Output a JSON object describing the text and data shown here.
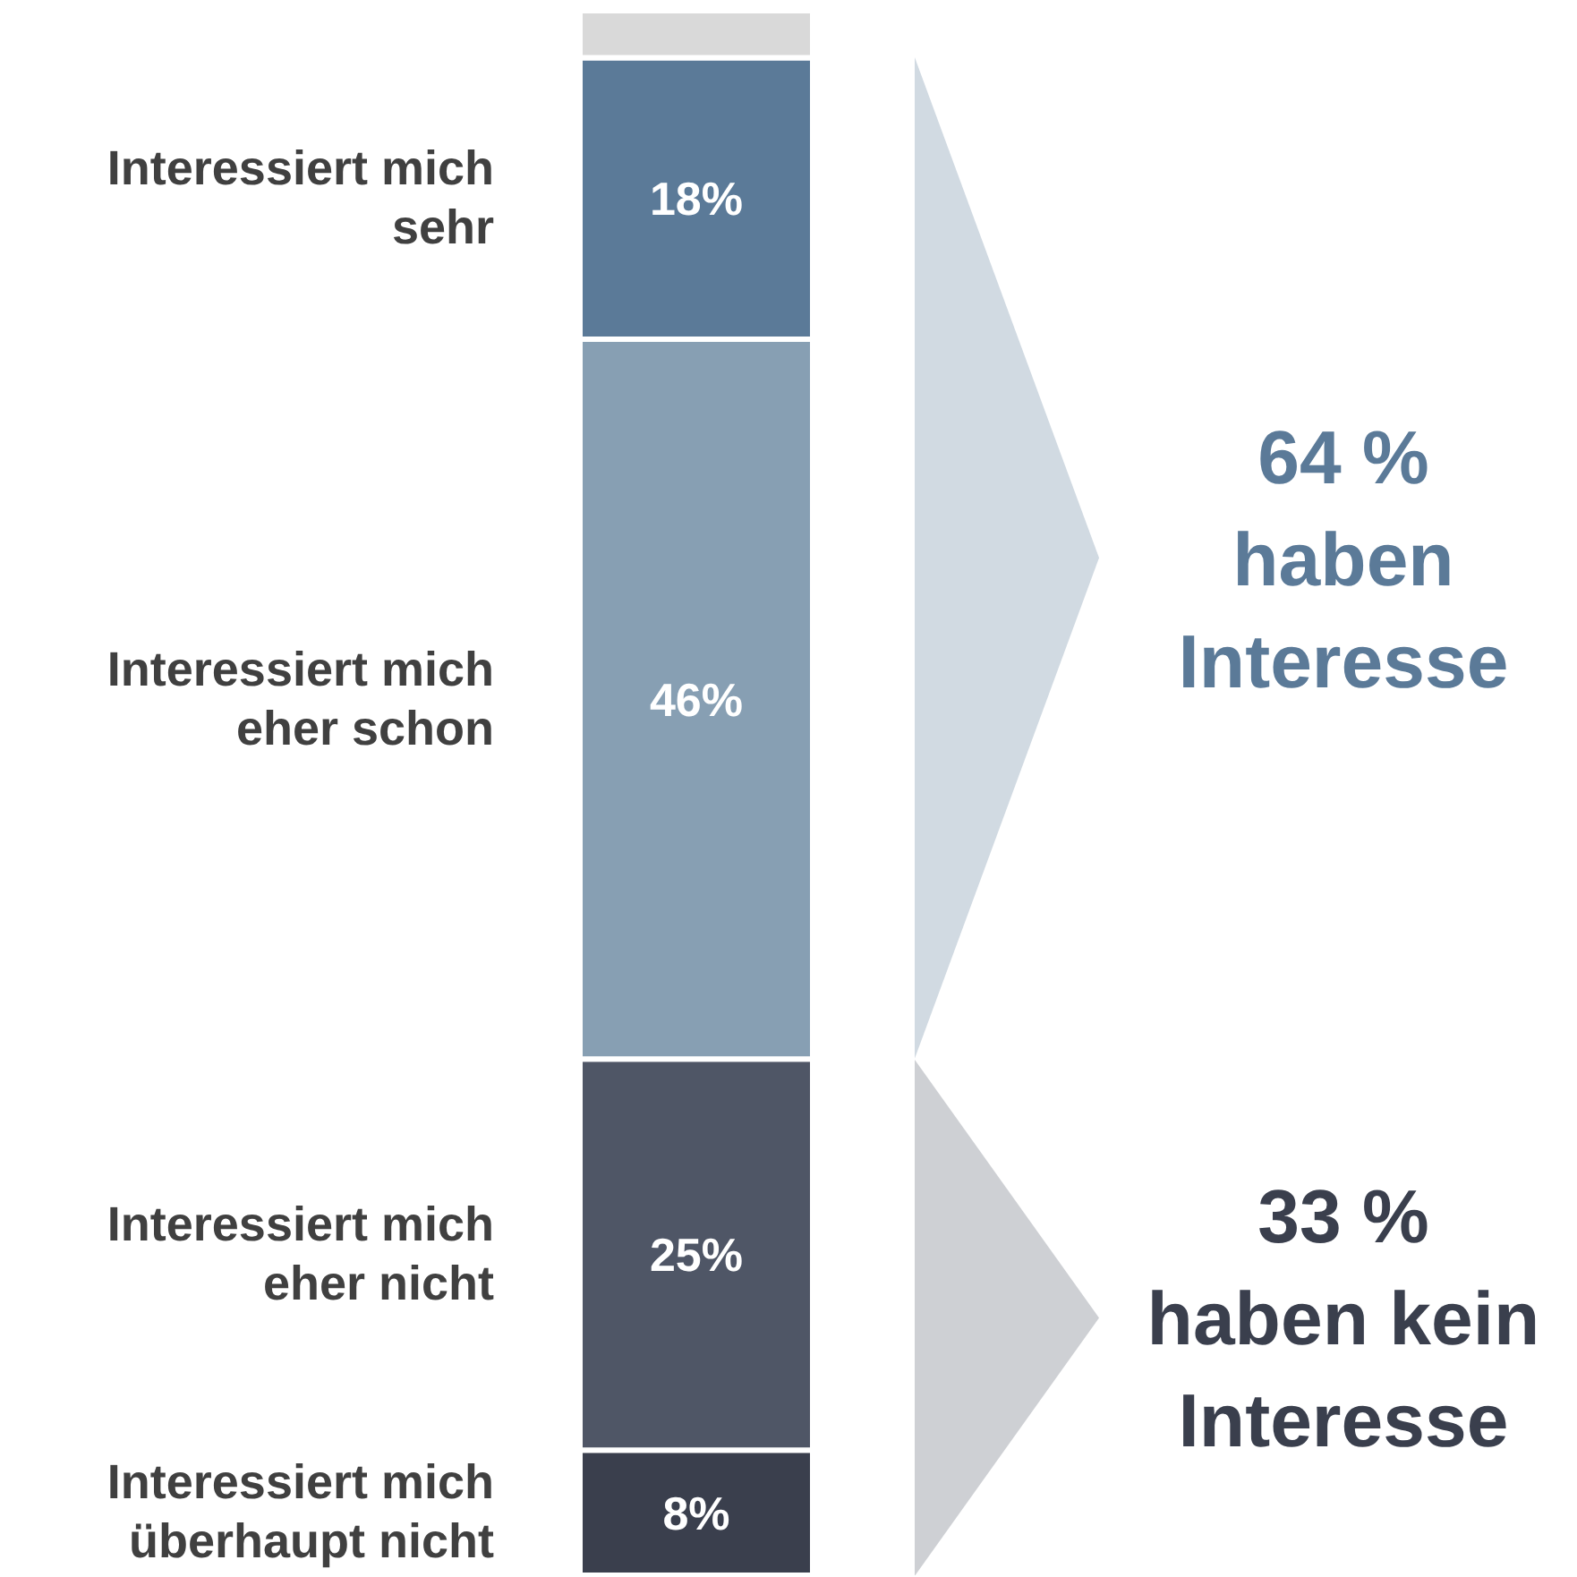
{
  "chart_data": {
    "type": "bar",
    "stacked": true,
    "categories": [
      null
    ],
    "legend": false,
    "series": [
      {
        "name": "Interessiert mich überhaupt nicht",
        "color": "#3a3f4d",
        "values": [
          8
        ],
        "value_labels": [
          "8%"
        ]
      },
      {
        "name": "Interessiert mich eher nicht",
        "color": "#4f5666",
        "values": [
          25
        ],
        "value_labels": [
          "25%"
        ]
      },
      {
        "name": "Interessiert mich eher schon",
        "color": "#879fb3",
        "values": [
          46
        ],
        "value_labels": [
          "46%"
        ]
      },
      {
        "name": "Interessiert mich sehr",
        "color": "#5b7a98",
        "values": [
          18
        ],
        "value_labels": [
          "18%"
        ]
      },
      {
        "color": "#d9d9d9",
        "values": [
          3
        ],
        "value_labels": [
          null
        ]
      }
    ],
    "annotations": [
      "64 %\nhaben\nInteresse",
      "33 %\nhaben kein\nInteresse"
    ]
  }
}
